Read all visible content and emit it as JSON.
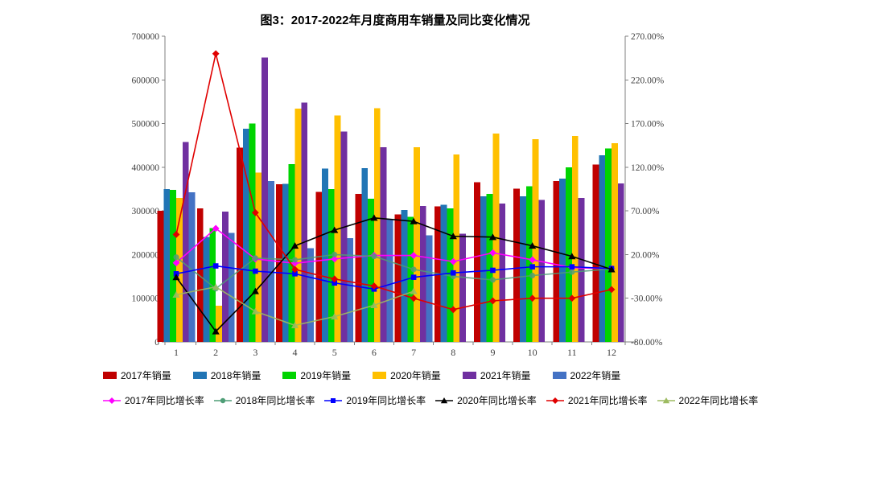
{
  "title": "图3：2017-2022年月度商用车销量及同比变化情况",
  "chart_data": {
    "type": "bar+line",
    "categories": [
      "1",
      "2",
      "3",
      "4",
      "5",
      "6",
      "7",
      "8",
      "9",
      "10",
      "11",
      "12"
    ],
    "left_axis": {
      "label": "",
      "min": 0,
      "max": 700000,
      "step": 100000,
      "ticks": [
        "0",
        "100000",
        "200000",
        "300000",
        "400000",
        "500000",
        "600000",
        "700000"
      ]
    },
    "right_axis": {
      "label": "",
      "min": -80,
      "max": 270,
      "step": 50,
      "ticks": [
        "-80.00%",
        "-30.00%",
        "20.00%",
        "70.00%",
        "120.00%",
        "170.00%",
        "220.00%",
        "270.00%"
      ]
    },
    "grid": false,
    "legend_position": "bottom",
    "bar_series": [
      {
        "name": "2017年销量",
        "color": "#C00000",
        "values": [
          300000,
          306000,
          445000,
          361000,
          344000,
          339000,
          292000,
          310000,
          366000,
          351000,
          368000,
          406000
        ]
      },
      {
        "name": "2018年销量",
        "color": "#2175B5",
        "values": [
          350000,
          240000,
          488000,
          362000,
          397000,
          398000,
          302000,
          314000,
          333000,
          333000,
          374000,
          427000
        ]
      },
      {
        "name": "2019年销量",
        "color": "#00D400",
        "values": [
          348000,
          261000,
          500000,
          407000,
          350000,
          328000,
          286000,
          306000,
          339000,
          356000,
          400000,
          443000
        ]
      },
      {
        "name": "2020年销量",
        "color": "#FFC000",
        "values": [
          330000,
          83000,
          388000,
          534000,
          519000,
          535000,
          446000,
          429000,
          477000,
          464000,
          472000,
          455000
        ]
      },
      {
        "name": "2021年销量",
        "color": "#7030A0",
        "values": [
          458000,
          298000,
          651000,
          548000,
          482000,
          446000,
          311000,
          248000,
          317000,
          325000,
          330000,
          363000
        ]
      },
      {
        "name": "2022年销量",
        "color": "#4472C4",
        "values": [
          343000,
          250000,
          368000,
          215000,
          238000,
          281000,
          244000,
          null,
          null,
          null,
          null,
          null
        ]
      }
    ],
    "line_series": [
      {
        "name": "2017年同比增长率",
        "color": "#FF00FF",
        "marker": "diamond",
        "opacity": 1,
        "values": [
          10.5,
          50,
          15,
          10,
          15,
          19,
          19,
          12,
          22,
          14,
          5,
          4
        ]
      },
      {
        "name": "2018年同比增长率",
        "color": "#4F9E77",
        "marker": "circle",
        "opacity": 0.85,
        "values": [
          17,
          -19,
          16,
          14,
          20,
          18,
          3,
          -5,
          -9,
          -4,
          0,
          3.5
        ]
      },
      {
        "name": "2019年同比增长率",
        "color": "#0000FF",
        "marker": "square",
        "opacity": 1,
        "values": [
          -2,
          7,
          1,
          -2,
          -12.5,
          -19.5,
          -6,
          -1,
          2,
          6,
          6,
          4
        ]
      },
      {
        "name": "2020年同比增长率",
        "color": "#000000",
        "marker": "triangle",
        "opacity": 1,
        "values": [
          -6,
          -68,
          -22,
          30,
          48,
          62,
          58,
          41,
          40,
          30,
          18,
          3
        ]
      },
      {
        "name": "2021年同比增长率",
        "color": "#E00000",
        "marker": "diamond",
        "opacity": 1,
        "values": [
          43,
          250,
          68,
          3,
          -8,
          -16,
          -30,
          -43,
          -33,
          -30,
          -30,
          -20
        ]
      },
      {
        "name": "2022年同比增长率",
        "color": "#9DBB61",
        "marker": "triangle",
        "opacity": 0.9,
        "values": [
          -26,
          -17,
          -45,
          -61,
          -51,
          -38,
          -22,
          null,
          null,
          null,
          null,
          null
        ]
      }
    ]
  }
}
